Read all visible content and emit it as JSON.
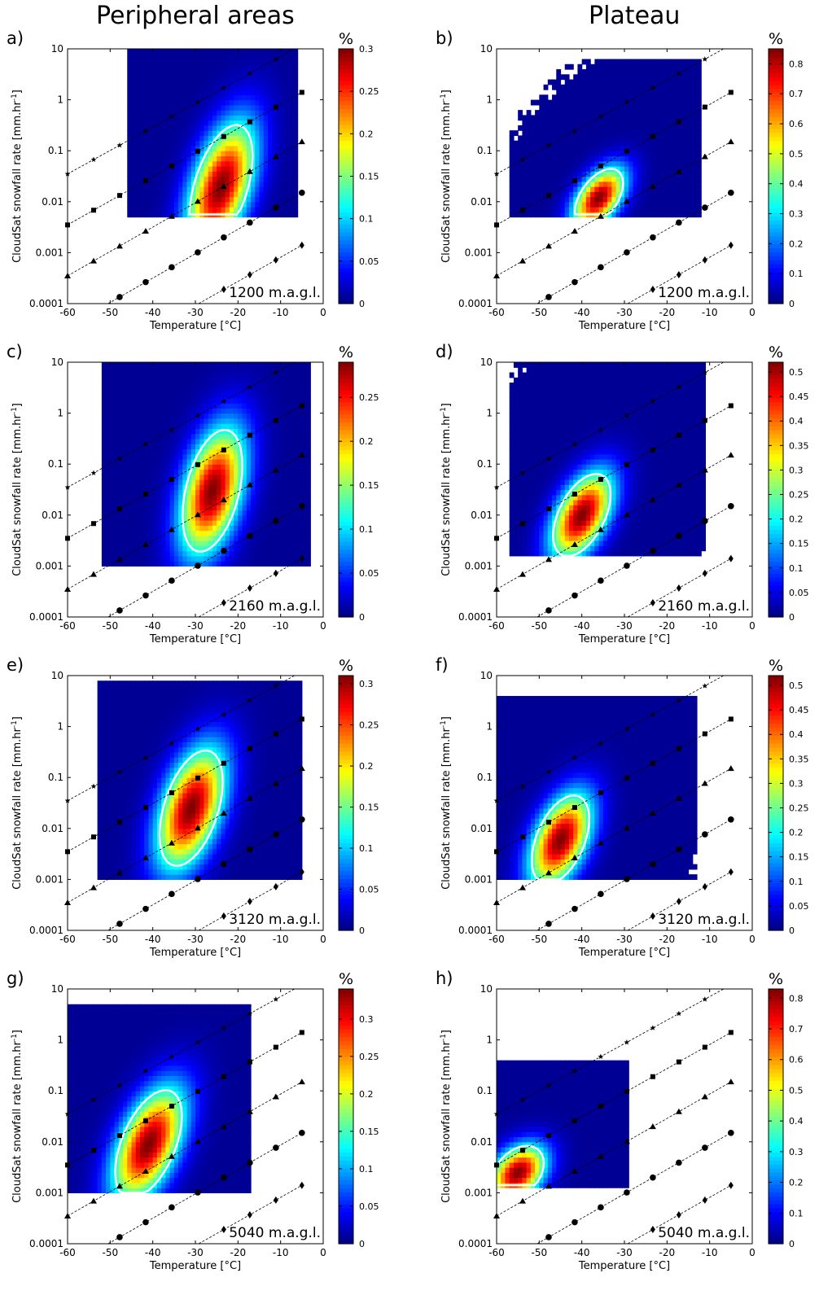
{
  "columns": [
    "Peripheral areas",
    "Plateau"
  ],
  "chart_data": {
    "type": "heatmap",
    "xlabel": "Temperature [°C]",
    "ylabel": "CloudSat snowfall rate [mm.hr-1]",
    "ylabel_base": "CloudSat snowfall rate [mm.hr",
    "ylabel_sup": "-1",
    "ylabel_close": "]",
    "xlim": [
      -60,
      0
    ],
    "ylim": [
      0.0001,
      10
    ],
    "yscale": "log",
    "xticks": [
      -60,
      -50,
      -40,
      -30,
      -20,
      -10,
      0
    ],
    "yticks": [
      0.0001,
      0.001,
      0.01,
      0.1,
      1,
      10
    ],
    "ytick_labels": [
      "0.0001",
      "0.001",
      "0.01",
      "0.1",
      "1",
      "10"
    ],
    "colorbar_unit": "%",
    "colormap": "jet",
    "contour_color": "#ffffff",
    "reference_lines": [
      {
        "marker": "star",
        "y_at_minus60": 0.035,
        "y_at_minus5": 12
      },
      {
        "marker": "square",
        "y_at_minus60": 0.0035,
        "y_at_minus5": 1.4
      },
      {
        "marker": "triangle",
        "y_at_minus60": 0.00035,
        "y_at_minus5": 0.15
      },
      {
        "marker": "circle",
        "y_at_minus60": 3.5e-05,
        "y_at_minus5": 0.015
      },
      {
        "marker": "diamond",
        "y_at_minus60": 3.5e-06,
        "y_at_minus5": 0.0014
      }
    ],
    "panels": [
      {
        "label": "a)",
        "altitude": "1200 m.a.g.l.",
        "column": "Peripheral areas",
        "cmax": 0.3,
        "cticks": [
          0,
          0.05,
          0.1,
          0.15,
          0.2,
          0.25,
          0.3
        ],
        "cticklabels": [
          "0",
          "0.05",
          "0.1",
          "0.15",
          "0.2",
          "0.25",
          "0.3"
        ],
        "peak_temperature": -24,
        "peak_rate": 0.02
      },
      {
        "label": "b)",
        "altitude": "1200 m.a.g.l.",
        "column": "Plateau",
        "cmax": 0.85,
        "cticks": [
          0,
          0.1,
          0.2,
          0.3,
          0.4,
          0.5,
          0.6,
          0.7,
          0.8
        ],
        "cticklabels": [
          "0",
          "0.1",
          "0.2",
          "0.3",
          "0.4",
          "0.5",
          "0.6",
          "0.7",
          "0.8"
        ],
        "peak_temperature": -36,
        "peak_rate": 0.012
      },
      {
        "label": "c)",
        "altitude": "2160 m.a.g.l.",
        "column": "Peripheral areas",
        "cmax": 0.29,
        "cticks": [
          0,
          0.05,
          0.1,
          0.15,
          0.2,
          0.25
        ],
        "cticklabels": [
          "0",
          "0.05",
          "0.1",
          "0.15",
          "0.2",
          "0.25"
        ],
        "peak_temperature": -26,
        "peak_rate": 0.03
      },
      {
        "label": "d)",
        "altitude": "2160 m.a.g.l.",
        "column": "Plateau",
        "cmax": 0.52,
        "cticks": [
          0,
          0.05,
          0.1,
          0.15,
          0.2,
          0.25,
          0.3,
          0.35,
          0.4,
          0.45,
          0.5
        ],
        "cticklabels": [
          "0",
          "0.05",
          "0.1",
          "0.15",
          "0.2",
          "0.25",
          "0.3",
          "0.35",
          "0.4",
          "0.45",
          "0.5"
        ],
        "peak_temperature": -40,
        "peak_rate": 0.01
      },
      {
        "label": "e)",
        "altitude": "3120 m.a.g.l.",
        "column": "Peripheral areas",
        "cmax": 0.31,
        "cticks": [
          0,
          0.05,
          0.1,
          0.15,
          0.2,
          0.25,
          0.3
        ],
        "cticklabels": [
          "0",
          "0.05",
          "0.1",
          "0.15",
          "0.2",
          "0.25",
          "0.3"
        ],
        "peak_temperature": -31,
        "peak_rate": 0.025
      },
      {
        "label": "f)",
        "altitude": "3120 m.a.g.l.",
        "column": "Plateau",
        "cmax": 0.52,
        "cticks": [
          0,
          0.05,
          0.1,
          0.15,
          0.2,
          0.25,
          0.3,
          0.35,
          0.4,
          0.45,
          0.5
        ],
        "cticklabels": [
          "0",
          "0.05",
          "0.1",
          "0.15",
          "0.2",
          "0.25",
          "0.3",
          "0.35",
          "0.4",
          "0.45",
          "0.5"
        ],
        "peak_temperature": -45,
        "peak_rate": 0.006
      },
      {
        "label": "g)",
        "altitude": "5040 m.a.g.l.",
        "column": "Peripheral areas",
        "cmax": 0.34,
        "cticks": [
          0,
          0.05,
          0.1,
          0.15,
          0.2,
          0.25,
          0.3
        ],
        "cticklabels": [
          "0",
          "0.05",
          "0.1",
          "0.15",
          "0.2",
          "0.25",
          "0.3"
        ],
        "peak_temperature": -41,
        "peak_rate": 0.009
      },
      {
        "label": "h)",
        "altitude": "5040 m.a.g.l.",
        "column": "Plateau",
        "cmax": 0.83,
        "cticks": [
          0,
          0.1,
          0.2,
          0.3,
          0.4,
          0.5,
          0.6,
          0.7,
          0.8
        ],
        "cticklabels": [
          "0",
          "0.1",
          "0.2",
          "0.3",
          "0.4",
          "0.5",
          "0.6",
          "0.7",
          "0.8"
        ],
        "peak_temperature": -55,
        "peak_rate": 0.0025
      }
    ]
  }
}
